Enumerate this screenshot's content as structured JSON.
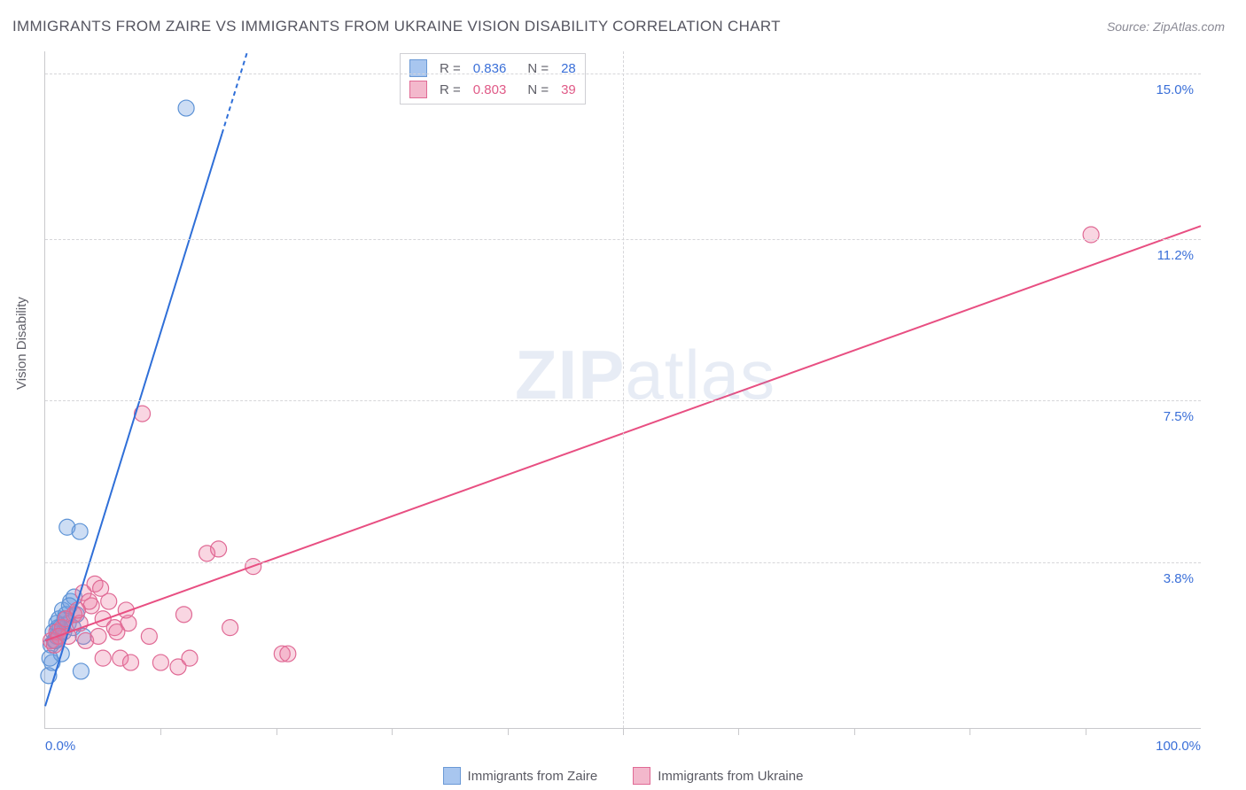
{
  "title": "IMMIGRANTS FROM ZAIRE VS IMMIGRANTS FROM UKRAINE VISION DISABILITY CORRELATION CHART",
  "source_label": "Source: ZipAtlas.com",
  "y_axis_label": "Vision Disability",
  "watermark": {
    "zip": "ZIP",
    "atlas": "atlas"
  },
  "chart": {
    "type": "scatter-with-regression",
    "background_color": "#ffffff",
    "grid_color": "#d6d6d9",
    "axis_color": "#c9c9cc",
    "axis_number_color": "#3a6fd8",
    "label_color": "#5f5f68",
    "title_color": "#555560",
    "x_domain": [
      0,
      100
    ],
    "y_domain": [
      0,
      15.5
    ],
    "x_ticks_labeled": [
      {
        "v": 0,
        "label": "0.0%"
      },
      {
        "v": 100,
        "label": "100.0%"
      }
    ],
    "x_ticks_minor": [
      10,
      20,
      30,
      40,
      50,
      60,
      70,
      80,
      90
    ],
    "y_ticks": [
      {
        "v": 3.8,
        "label": "3.8%"
      },
      {
        "v": 7.5,
        "label": "7.5%"
      },
      {
        "v": 11.2,
        "label": "11.2%"
      },
      {
        "v": 15.0,
        "label": "15.0%"
      }
    ],
    "marker_radius": 9,
    "marker_stroke_width": 1.2,
    "regression_line_width": 2,
    "series": [
      {
        "key": "zaire",
        "label": "Immigrants from Zaire",
        "fill": "rgba(111,159,224,0.35)",
        "stroke": "#5d93d6",
        "line_color": "#2f6fd8",
        "swatch_fill": "#a8c6ef",
        "swatch_border": "#6a99d6",
        "R": "0.836",
        "N": "28",
        "points": [
          [
            0.3,
            1.2
          ],
          [
            0.5,
            1.9
          ],
          [
            0.6,
            1.5
          ],
          [
            0.8,
            2.0
          ],
          [
            1.0,
            2.1
          ],
          [
            1.1,
            2.3
          ],
          [
            1.2,
            2.5
          ],
          [
            1.4,
            1.7
          ],
          [
            1.5,
            2.7
          ],
          [
            1.6,
            2.2
          ],
          [
            1.8,
            2.6
          ],
          [
            1.9,
            4.6
          ],
          [
            2.0,
            2.4
          ],
          [
            1.0,
            2.4
          ],
          [
            2.2,
            2.9
          ],
          [
            2.4,
            2.3
          ],
          [
            2.5,
            3.0
          ],
          [
            2.7,
            2.6
          ],
          [
            3.0,
            4.5
          ],
          [
            3.3,
            2.1
          ],
          [
            0.7,
            2.2
          ],
          [
            0.9,
            2.0
          ],
          [
            1.3,
            2.3
          ],
          [
            1.7,
            2.5
          ],
          [
            2.1,
            2.8
          ],
          [
            3.1,
            1.3
          ],
          [
            12.2,
            14.2
          ],
          [
            0.4,
            1.6
          ]
        ],
        "regression": {
          "x1": 0,
          "y1": 0.5,
          "x2": 17.5,
          "y2": 15.5,
          "dashed_after_x": 15.3
        }
      },
      {
        "key": "ukraine",
        "label": "Immigrants from Ukraine",
        "fill": "rgba(235,120,160,0.30)",
        "stroke": "#e06a95",
        "line_color": "#e84f82",
        "swatch_fill": "#f3b8cc",
        "swatch_border": "#e06a95",
        "R": "0.803",
        "N": "39",
        "points": [
          [
            0.5,
            2.0
          ],
          [
            1.0,
            2.2
          ],
          [
            1.5,
            2.3
          ],
          [
            2.0,
            2.1
          ],
          [
            2.5,
            2.6
          ],
          [
            3.0,
            2.4
          ],
          [
            3.3,
            3.1
          ],
          [
            3.5,
            2.0
          ],
          [
            4.0,
            2.8
          ],
          [
            4.3,
            3.3
          ],
          [
            4.6,
            2.1
          ],
          [
            5.0,
            2.5
          ],
          [
            5.0,
            1.6
          ],
          [
            5.5,
            2.9
          ],
          [
            6.0,
            2.3
          ],
          [
            6.5,
            1.6
          ],
          [
            7.0,
            2.7
          ],
          [
            7.4,
            1.5
          ],
          [
            7.2,
            2.4
          ],
          [
            8.4,
            7.2
          ],
          [
            9.0,
            2.1
          ],
          [
            10.0,
            1.5
          ],
          [
            11.5,
            1.4
          ],
          [
            12.0,
            2.6
          ],
          [
            12.5,
            1.6
          ],
          [
            14.0,
            4.0
          ],
          [
            15.0,
            4.1
          ],
          [
            16.0,
            2.3
          ],
          [
            18.0,
            3.7
          ],
          [
            20.5,
            1.7
          ],
          [
            21.0,
            1.7
          ],
          [
            3.8,
            2.9
          ],
          [
            2.8,
            2.7
          ],
          [
            1.8,
            2.5
          ],
          [
            1.2,
            2.1
          ],
          [
            0.8,
            1.9
          ],
          [
            6.2,
            2.2
          ],
          [
            4.8,
            3.2
          ],
          [
            90.5,
            11.3
          ]
        ],
        "regression": {
          "x1": 0,
          "y1": 2.0,
          "x2": 100,
          "y2": 11.5
        }
      }
    ]
  },
  "legend_top": {
    "R_label": "R =",
    "N_label": "N ="
  }
}
